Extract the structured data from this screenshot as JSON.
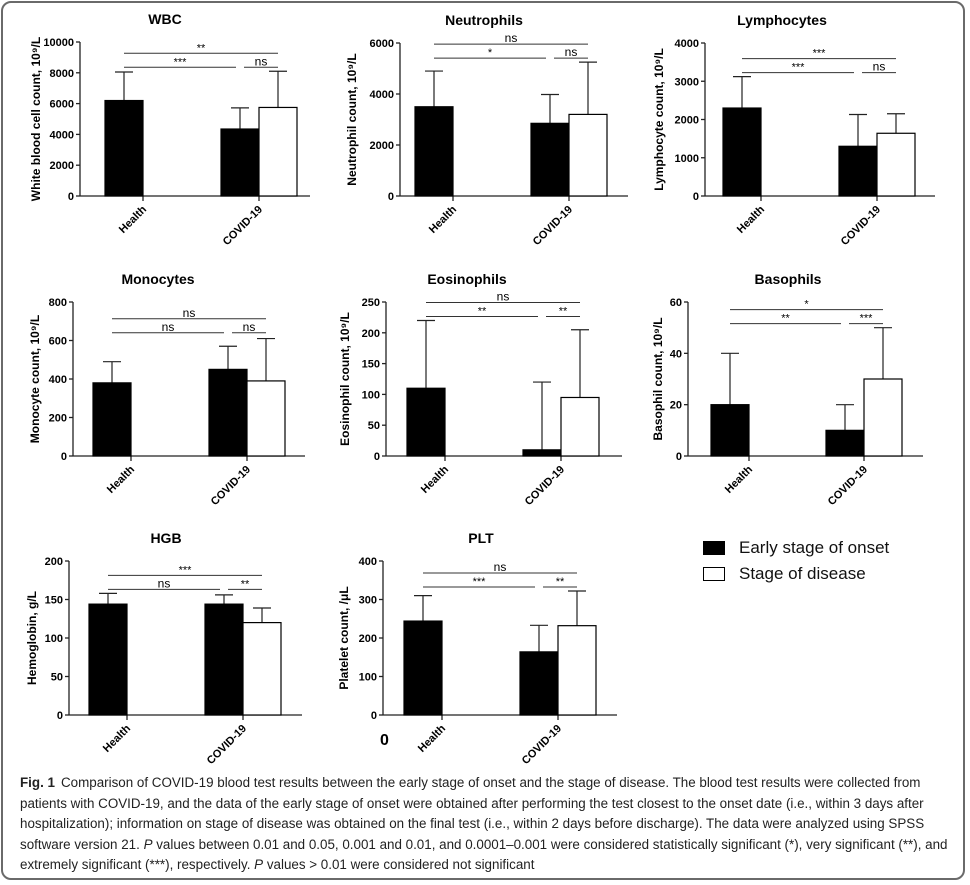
{
  "legend": {
    "items": [
      {
        "label": "Early stage of onset",
        "fill": "#000000"
      },
      {
        "label": "Stage of disease",
        "fill": "#ffffff"
      }
    ]
  },
  "stray_label": "0",
  "caption": {
    "fig_label": "Fig. 1",
    "part1": "Comparison of COVID-19 blood test results between the early stage of onset and the stage of disease. The blood test results were collected from patients with COVID-19, and the data of the early stage of onset were obtained after performing the test closest to the onset date (i.e., within 3 days after hospitalization); information on stage of disease was obtained on the final test (i.e., within 2 days before discharge). The data were analyzed using SPSS software version 21. ",
    "p1": "P",
    "part2": " values between 0.01 and 0.05, 0.001 and 0.01, and 0.0001–0.001 were considered statistically significant (*), very significant (**), and extremely significant (***), respectively. ",
    "p2": "P",
    "part3": " values > 0.01 were considered not significant"
  },
  "chart_data": [
    {
      "type": "bar",
      "title": "WBC",
      "ylabel": "White blood cell count, 10⁹/L",
      "ylim": [
        0,
        10000
      ],
      "yticks": [
        0,
        2000,
        4000,
        6000,
        8000,
        10000
      ],
      "categories": [
        "Health",
        "COVID-19"
      ],
      "series": [
        {
          "name": "Early stage of onset",
          "values": [
            6200,
            4350
          ],
          "errors_upper": [
            8050,
            5720
          ]
        },
        {
          "name": "Stage of disease",
          "values": [
            null,
            5750
          ],
          "errors_upper": [
            null,
            8100
          ]
        }
      ],
      "annotations": [
        {
          "label": "***",
          "from": "Health",
          "to": "COVID-19 early"
        },
        {
          "label": "ns",
          "from": "COVID-19 early",
          "to": "COVID-19 disease"
        },
        {
          "label": "**",
          "from": "Health",
          "to": "COVID-19 disease"
        }
      ]
    },
    {
      "type": "bar",
      "title": "Neutrophils",
      "ylabel": "Neutrophil count, 10⁹/L",
      "ylim": [
        0,
        6000
      ],
      "yticks": [
        0,
        2000,
        4000,
        6000
      ],
      "categories": [
        "Health",
        "COVID-19"
      ],
      "series": [
        {
          "name": "Early stage of onset",
          "values": [
            3500,
            2850
          ],
          "errors_upper": [
            4900,
            3980
          ]
        },
        {
          "name": "Stage of disease",
          "values": [
            null,
            3200
          ],
          "errors_upper": [
            null,
            5250
          ]
        }
      ],
      "annotations": [
        {
          "label": "*",
          "from": "Health",
          "to": "COVID-19 early"
        },
        {
          "label": "ns",
          "from": "COVID-19 early",
          "to": "COVID-19 disease"
        },
        {
          "label": "ns",
          "from": "Health",
          "to": "COVID-19 disease"
        }
      ]
    },
    {
      "type": "bar",
      "title": "Lymphocytes",
      "ylabel": "Lymphocyte count, 10⁹/L",
      "ylim": [
        0,
        4000
      ],
      "yticks": [
        0,
        1000,
        2000,
        3000,
        4000
      ],
      "categories": [
        "Health",
        "COVID-19"
      ],
      "series": [
        {
          "name": "Early stage of onset",
          "values": [
            2300,
            1300
          ],
          "errors_upper": [
            3120,
            2130
          ]
        },
        {
          "name": "Stage of disease",
          "values": [
            null,
            1640
          ],
          "errors_upper": [
            null,
            2150
          ]
        }
      ],
      "annotations": [
        {
          "label": "***",
          "from": "Health",
          "to": "COVID-19 early"
        },
        {
          "label": "ns",
          "from": "COVID-19 early",
          "to": "COVID-19 disease"
        },
        {
          "label": "***",
          "from": "Health",
          "to": "COVID-19 disease"
        }
      ]
    },
    {
      "type": "bar",
      "title": "Monocytes",
      "ylabel": "Monocyte count, 10⁹/L",
      "ylim": [
        0,
        800
      ],
      "yticks": [
        0,
        200,
        400,
        600,
        800
      ],
      "categories": [
        "Health",
        "COVID-19"
      ],
      "series": [
        {
          "name": "Early stage of onset",
          "values": [
            380,
            450
          ],
          "errors_upper": [
            490,
            570
          ]
        },
        {
          "name": "Stage of disease",
          "values": [
            null,
            390
          ],
          "errors_upper": [
            null,
            610
          ]
        }
      ],
      "annotations": [
        {
          "label": "ns",
          "from": "Health",
          "to": "COVID-19 early"
        },
        {
          "label": "ns",
          "from": "COVID-19 early",
          "to": "COVID-19 disease"
        },
        {
          "label": "ns",
          "from": "Health",
          "to": "COVID-19 disease"
        }
      ]
    },
    {
      "type": "bar",
      "title": "Eosinophils",
      "ylabel": "Eosinophil count, 10⁹/L",
      "ylim": [
        0,
        250
      ],
      "yticks": [
        0,
        50,
        100,
        150,
        200,
        250
      ],
      "categories": [
        "Health",
        "COVID-19"
      ],
      "series": [
        {
          "name": "Early stage of onset",
          "values": [
            110,
            10
          ],
          "errors_upper": [
            220,
            120
          ]
        },
        {
          "name": "Stage of disease",
          "values": [
            null,
            95
          ],
          "errors_upper": [
            null,
            205
          ]
        }
      ],
      "annotations": [
        {
          "label": "**",
          "from": "Health",
          "to": "COVID-19 early"
        },
        {
          "label": "**",
          "from": "COVID-19 early",
          "to": "COVID-19 disease"
        },
        {
          "label": "ns",
          "from": "Health",
          "to": "COVID-19 disease"
        }
      ]
    },
    {
      "type": "bar",
      "title": "Basophils",
      "ylabel": "Basophil count, 10⁹/L",
      "ylim": [
        0,
        60
      ],
      "yticks": [
        0,
        20,
        40,
        60
      ],
      "categories": [
        "Health",
        "COVID-19"
      ],
      "series": [
        {
          "name": "Early stage of onset",
          "values": [
            20,
            10
          ],
          "errors_upper": [
            40,
            20
          ]
        },
        {
          "name": "Stage of disease",
          "values": [
            null,
            30
          ],
          "errors_upper": [
            null,
            50
          ]
        }
      ],
      "annotations": [
        {
          "label": "**",
          "from": "Health",
          "to": "COVID-19 early"
        },
        {
          "label": "***",
          "from": "COVID-19 early",
          "to": "COVID-19 disease"
        },
        {
          "label": "*",
          "from": "Health",
          "to": "COVID-19 disease"
        }
      ]
    },
    {
      "type": "bar",
      "title": "HGB",
      "ylabel": "Hemoglobin, g/L",
      "ylim": [
        0,
        200
      ],
      "yticks": [
        0,
        50,
        100,
        150,
        200
      ],
      "categories": [
        "Health",
        "COVID-19"
      ],
      "series": [
        {
          "name": "Early stage of onset",
          "values": [
            144,
            144
          ],
          "errors_upper": [
            158,
            156
          ]
        },
        {
          "name": "Stage of disease",
          "values": [
            null,
            120
          ],
          "errors_upper": [
            null,
            139
          ]
        }
      ],
      "annotations": [
        {
          "label": "ns",
          "from": "Health",
          "to": "COVID-19 early"
        },
        {
          "label": "**",
          "from": "COVID-19 early",
          "to": "COVID-19 disease"
        },
        {
          "label": "***",
          "from": "Health",
          "to": "COVID-19 disease"
        }
      ]
    },
    {
      "type": "bar",
      "title": "PLT",
      "ylabel": "Platelet count, /μL",
      "ylim": [
        0,
        400
      ],
      "yticks": [
        0,
        100,
        200,
        300,
        400
      ],
      "categories": [
        "Health",
        "COVID-19"
      ],
      "series": [
        {
          "name": "Early stage of onset",
          "values": [
            244,
            164
          ],
          "errors_upper": [
            310,
            233
          ]
        },
        {
          "name": "Stage of disease",
          "values": [
            null,
            232
          ],
          "errors_upper": [
            null,
            322
          ]
        }
      ],
      "annotations": [
        {
          "label": "***",
          "from": "Health",
          "to": "COVID-19 early"
        },
        {
          "label": "**",
          "from": "COVID-19 early",
          "to": "COVID-19 disease"
        },
        {
          "label": "ns",
          "from": "Health",
          "to": "COVID-19 disease"
        }
      ]
    }
  ]
}
